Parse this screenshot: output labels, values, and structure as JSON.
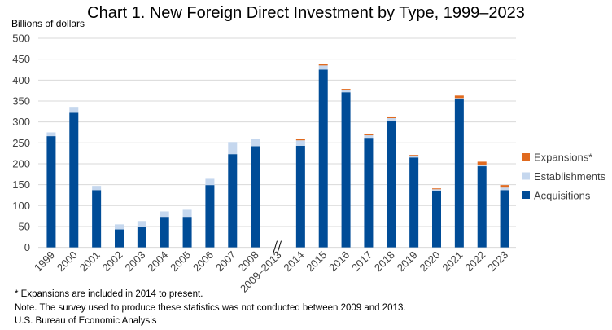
{
  "chart_data": {
    "type": "bar",
    "stacked": true,
    "title": "Chart 1. New Foreign Direct Investment by Type, 1999–2023",
    "ylabel": "Billions of dollars",
    "xlabel": "",
    "ylim": [
      0,
      500
    ],
    "yticks": [
      0,
      50,
      100,
      150,
      200,
      250,
      300,
      350,
      400,
      450,
      500
    ],
    "grid": true,
    "legend_position": "right",
    "categories": [
      "1999",
      "2000",
      "2001",
      "2002",
      "2003",
      "2004",
      "2005",
      "2006",
      "2007",
      "2008",
      "2009–2013",
      "2014",
      "2015",
      "2016",
      "2017",
      "2018",
      "2019",
      "2020",
      "2021",
      "2022",
      "2023"
    ],
    "axis_break_after": "2008",
    "series": [
      {
        "name": "Acquisitions",
        "color": "#004C97",
        "values": [
          266,
          322,
          137,
          43,
          49,
          73,
          73,
          149,
          223,
          242,
          null,
          243,
          425,
          371,
          262,
          303,
          215,
          135,
          355,
          194,
          137
        ]
      },
      {
        "name": "Establishments",
        "color": "#C5D7EE",
        "values": [
          9,
          14,
          10,
          12,
          14,
          13,
          17,
          15,
          29,
          18,
          null,
          13,
          10,
          6,
          6,
          6,
          4,
          4,
          2,
          4,
          6
        ]
      },
      {
        "name": "Expansions*",
        "color": "#E06A1F",
        "values": [
          null,
          null,
          null,
          null,
          null,
          null,
          null,
          null,
          null,
          null,
          null,
          4,
          4,
          2,
          4,
          4,
          2,
          2,
          6,
          7,
          6
        ]
      }
    ],
    "legend_order": [
      "Expansions*",
      "Establishments",
      "Acquisitions"
    ]
  },
  "notes": {
    "footnote": "* Expansions are included in 2014 to present.",
    "note": "Note. The survey used to produce these statistics was not conducted between 2009 and 2013.",
    "source": "U.S. Bureau of Economic Analysis"
  }
}
